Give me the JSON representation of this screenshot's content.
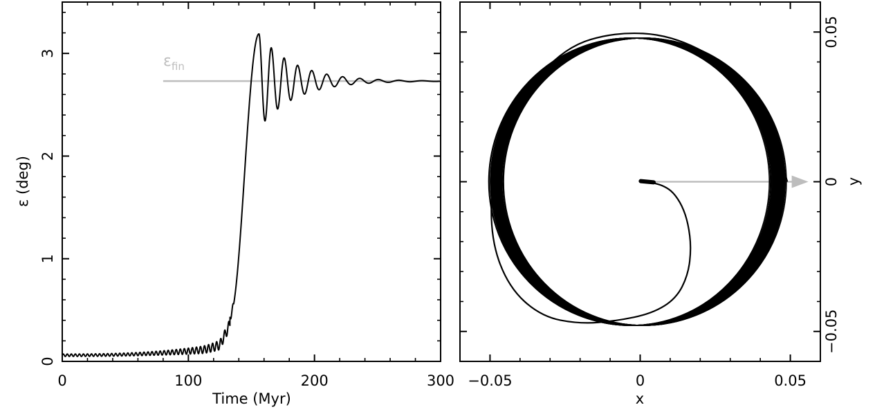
{
  "chart_data": [
    {
      "type": "line",
      "xlabel": "Time (Myr)",
      "ylabel": "ε (deg)",
      "xlim": [
        0,
        300
      ],
      "ylim": [
        0,
        3.5
      ],
      "x_ticks": [
        0,
        100,
        200,
        300
      ],
      "x_tick_labels": [
        "0",
        "100",
        "200",
        "300"
      ],
      "y_ticks": [
        0,
        1,
        2,
        3
      ],
      "y_tick_labels": [
        "0",
        "1",
        "2",
        "3"
      ],
      "grid": false,
      "reference_line": {
        "label": "ε",
        "label_sub": "fin",
        "y": 2.73,
        "x_start": 80,
        "x_end": 300,
        "color": "#bdbdbd"
      },
      "series": [
        {
          "color": "#000000",
          "x": [
            0,
            20,
            40,
            60,
            80,
            100,
            110,
            120,
            125,
            130,
            133,
            136,
            139,
            142,
            145,
            148,
            151,
            154,
            156,
            158,
            160,
            163,
            166,
            170,
            175,
            180,
            190,
            200,
            220,
            250,
            300
          ],
          "y": [
            0.06,
            0.065,
            0.075,
            0.09,
            0.11,
            0.14,
            0.17,
            0.22,
            0.27,
            0.35,
            0.45,
            0.7,
            1.2,
            1.75,
            2.3,
            2.75,
            3.0,
            3.17,
            3.19,
            3.05,
            2.7,
            2.45,
            2.95,
            2.55,
            2.85,
            2.62,
            2.8,
            2.68,
            2.76,
            2.73,
            2.73
          ]
        }
      ]
    },
    {
      "type": "line",
      "xlabel": "x",
      "ylabel": "y",
      "xlim": [
        -0.06,
        0.06
      ],
      "ylim": [
        -0.06,
        0.06
      ],
      "x_ticks": [
        -0.05,
        0,
        0.05
      ],
      "x_tick_labels": [
        "−0.05",
        "0",
        "0.05"
      ],
      "y_ticks": [
        -0.05,
        0,
        0.05
      ],
      "y_tick_labels": [
        "−0.05",
        "0",
        "0.05"
      ],
      "grid": false,
      "arrow": {
        "from": [
          0,
          0
        ],
        "to": [
          0.056,
          0
        ],
        "color": "#bdbdbd"
      },
      "spiral_path": {
        "color": "#000000",
        "x": [
          0.002,
          0.005,
          0.008,
          0.011,
          0.014,
          0.016,
          0.017,
          0.016,
          0.012,
          0.004,
          -0.008,
          -0.02,
          -0.033,
          -0.044,
          -0.05,
          -0.049,
          -0.04,
          -0.025,
          -0.008,
          0.01,
          0.028,
          0.042,
          0.049
        ],
        "y": [
          0,
          -0.0005,
          -0.0015,
          -0.0035,
          -0.008,
          -0.014,
          -0.022,
          -0.031,
          -0.039,
          -0.044,
          -0.0465,
          -0.0475,
          -0.045,
          -0.035,
          -0.018,
          0.005,
          0.028,
          0.045,
          0.05,
          0.049,
          0.04,
          0.025,
          0.0
        ]
      },
      "limit_cycle": {
        "color": "#000000",
        "center": [
          -0.001,
          0.0
        ],
        "radius_x": 0.047,
        "radius_y": 0.048
      }
    }
  ]
}
